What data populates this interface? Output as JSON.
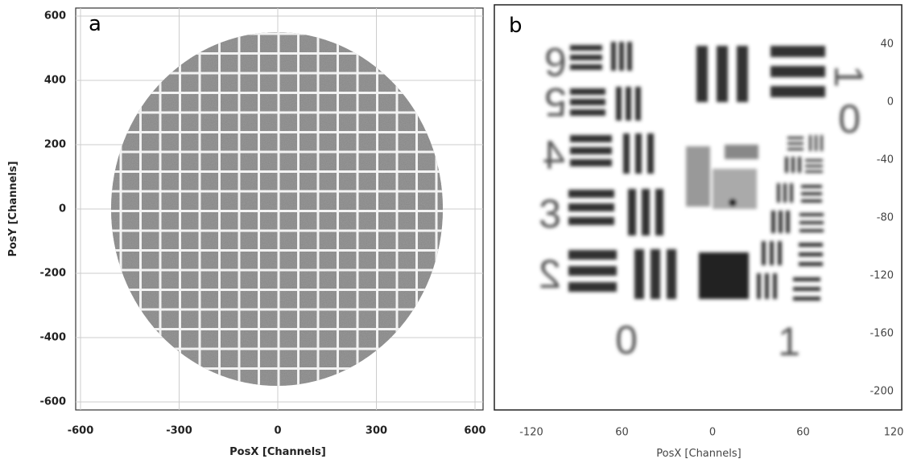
{
  "panels": [
    {
      "letter": "a",
      "xlabel": "PosX [Channels]",
      "ylabel": "PosY [Channels]",
      "xticks": [
        "-600",
        "-300",
        "0",
        "300",
        "600"
      ],
      "yticks": [
        "600",
        "400",
        "200",
        "0",
        "-200",
        "-400",
        "-600"
      ]
    },
    {
      "letter": "b",
      "xlabel": "PosX [Channels]",
      "xticks": [
        "-120",
        "60",
        "0",
        "60",
        "120"
      ],
      "yticks": [
        "40",
        "0",
        "-40",
        "-80",
        "-120",
        "-160",
        "-200"
      ],
      "target_digits": [
        "6",
        "5",
        "4",
        "3",
        "2",
        "0",
        "1",
        "1",
        "0"
      ]
    }
  ]
}
